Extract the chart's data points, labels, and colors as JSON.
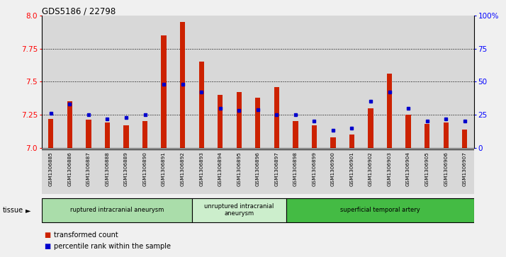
{
  "title": "GDS5186 / 22798",
  "samples": [
    "GSM1306885",
    "GSM1306886",
    "GSM1306887",
    "GSM1306888",
    "GSM1306889",
    "GSM1306890",
    "GSM1306891",
    "GSM1306892",
    "GSM1306893",
    "GSM1306894",
    "GSM1306895",
    "GSM1306896",
    "GSM1306897",
    "GSM1306898",
    "GSM1306899",
    "GSM1306900",
    "GSM1306901",
    "GSM1306902",
    "GSM1306903",
    "GSM1306904",
    "GSM1306905",
    "GSM1306906",
    "GSM1306907"
  ],
  "transformed_count": [
    7.22,
    7.35,
    7.21,
    7.19,
    7.17,
    7.2,
    7.85,
    7.95,
    7.65,
    7.4,
    7.42,
    7.38,
    7.46,
    7.2,
    7.17,
    7.08,
    7.1,
    7.3,
    7.56,
    7.25,
    7.18,
    7.19,
    7.14
  ],
  "percentile_rank": [
    26,
    33,
    25,
    22,
    23,
    25,
    48,
    48,
    42,
    30,
    28,
    29,
    25,
    25,
    20,
    13,
    15,
    35,
    42,
    30,
    20,
    22,
    20
  ],
  "groups": [
    {
      "label": "ruptured intracranial aneurysm",
      "start": 0,
      "end": 8,
      "color": "#aaddaa"
    },
    {
      "label": "unruptured intracranial\naneurysm",
      "start": 8,
      "end": 13,
      "color": "#cceecc"
    },
    {
      "label": "superficial temporal artery",
      "start": 13,
      "end": 23,
      "color": "#44bb44"
    }
  ],
  "ylim_left": [
    7.0,
    8.0
  ],
  "ylim_right": [
    0,
    100
  ],
  "yticks_left": [
    7.0,
    7.25,
    7.5,
    7.75,
    8.0
  ],
  "yticks_right": [
    0,
    25,
    50,
    75,
    100
  ],
  "bar_color": "#cc2200",
  "dot_color": "#0000cc",
  "background_color": "#f0f0f0",
  "plot_bg_color": "#ffffff",
  "legend_items": [
    "transformed count",
    "percentile rank within the sample"
  ]
}
